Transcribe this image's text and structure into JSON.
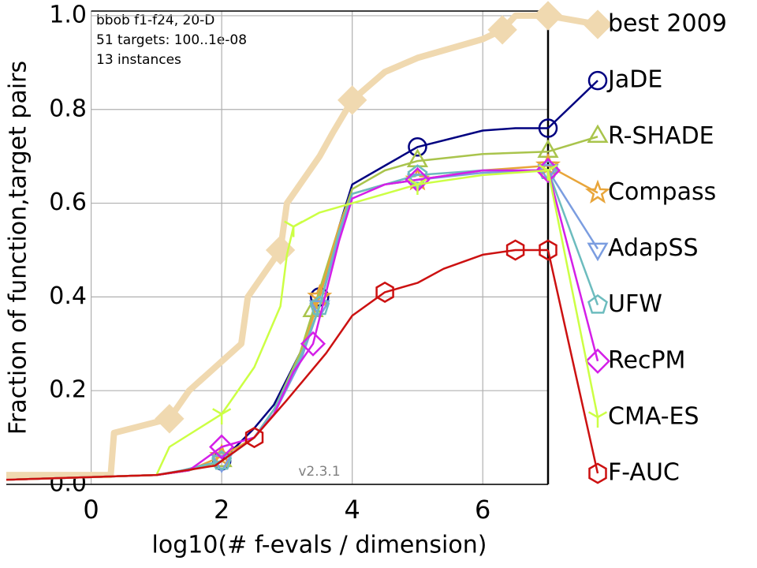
{
  "chart_data": {
    "type": "line",
    "xlabel": "log10(# f-evals / dimension)",
    "ylabel": "Fraction of function,target pairs",
    "annotations": [
      "bbob f1-f24, 20-D",
      "51 targets: 100..1e-08",
      "13 instances"
    ],
    "version": "v2.3.1",
    "xlim": [
      -1.3,
      7
    ],
    "ylim": [
      0,
      1.01
    ],
    "xticks": [
      0,
      2,
      4,
      6
    ],
    "yticks": [
      {
        "value": 0,
        "label": "0.0"
      },
      {
        "value": 0.2,
        "label": "0.2"
      },
      {
        "value": 0.4,
        "label": "0.4"
      },
      {
        "value": 0.6,
        "label": "0.6"
      },
      {
        "value": 0.8,
        "label": "0.8"
      },
      {
        "value": 1,
        "label": "1.0"
      }
    ],
    "grid": true,
    "series": [
      {
        "name": "best 2009",
        "color": "#f0d9b0",
        "marker": "diamond",
        "width": 8,
        "x": [
          -1.3,
          0.3,
          0.35,
          1.2,
          1.5,
          2.3,
          2.4,
          2.9,
          3.0,
          3.5,
          3.7,
          4.0,
          4.5,
          5.0,
          6.0,
          6.3,
          6.5,
          7.0
        ],
        "values": [
          0.02,
          0.02,
          0.11,
          0.14,
          0.2,
          0.3,
          0.4,
          0.5,
          0.6,
          0.7,
          0.75,
          0.82,
          0.88,
          0.91,
          0.95,
          0.97,
          1.0,
          1.0
        ]
      },
      {
        "name": "JaDE",
        "color": "#000080",
        "marker": "circle",
        "width": 2.5,
        "x": [
          -1.3,
          1.0,
          1.5,
          2.0,
          2.5,
          2.8,
          3.2,
          3.5,
          3.8,
          4.0,
          4.5,
          5.0,
          6.0,
          6.5,
          7.0
        ],
        "values": [
          0.01,
          0.02,
          0.03,
          0.05,
          0.12,
          0.17,
          0.28,
          0.4,
          0.55,
          0.64,
          0.68,
          0.72,
          0.755,
          0.76,
          0.76
        ]
      },
      {
        "name": "R-SHADE",
        "color": "#a9c44c",
        "marker": "triangle",
        "width": 2.5,
        "x": [
          -1.3,
          1.0,
          1.5,
          2.0,
          2.5,
          2.8,
          3.2,
          3.4,
          3.8,
          4.0,
          4.5,
          5.0,
          6.0,
          7.0
        ],
        "values": [
          0.01,
          0.02,
          0.03,
          0.05,
          0.1,
          0.16,
          0.28,
          0.37,
          0.55,
          0.63,
          0.67,
          0.69,
          0.705,
          0.71
        ]
      },
      {
        "name": "Compass",
        "color": "#e8a53a",
        "marker": "star",
        "width": 2.5,
        "x": [
          -1.3,
          1.0,
          1.5,
          2.0,
          2.5,
          2.8,
          3.2,
          3.5,
          3.8,
          4.0,
          4.5,
          5.0,
          6.0,
          7.0
        ],
        "values": [
          0.01,
          0.02,
          0.03,
          0.06,
          0.1,
          0.15,
          0.27,
          0.4,
          0.55,
          0.62,
          0.64,
          0.65,
          0.67,
          0.68
        ]
      },
      {
        "name": "AdapSS",
        "color": "#7b9de0",
        "marker": "tridown",
        "width": 2.5,
        "x": [
          -1.3,
          1.0,
          1.4,
          2.0,
          2.5,
          2.8,
          3.2,
          3.5,
          3.8,
          4.0,
          4.5,
          5.0,
          6.0,
          7.0
        ],
        "values": [
          0.01,
          0.02,
          0.03,
          0.05,
          0.1,
          0.15,
          0.26,
          0.38,
          0.53,
          0.62,
          0.64,
          0.65,
          0.665,
          0.67
        ]
      },
      {
        "name": "UFW",
        "color": "#6cbcbe",
        "marker": "pentagon",
        "width": 2.5,
        "x": [
          -1.3,
          1.0,
          1.4,
          2.0,
          2.5,
          2.8,
          3.2,
          3.5,
          3.8,
          4.0,
          4.5,
          5.0,
          6.0,
          7.0
        ],
        "values": [
          0.01,
          0.02,
          0.03,
          0.05,
          0.1,
          0.16,
          0.27,
          0.38,
          0.54,
          0.62,
          0.64,
          0.66,
          0.67,
          0.67
        ]
      },
      {
        "name": "RecPM",
        "color": "#d41fe8",
        "marker": "diamond",
        "width": 2.5,
        "x": [
          -1.3,
          1.0,
          1.5,
          2.0,
          2.5,
          2.8,
          3.1,
          3.4,
          3.8,
          4.0,
          4.5,
          5.0,
          6.0,
          7.0
        ],
        "values": [
          0.01,
          0.02,
          0.03,
          0.08,
          0.1,
          0.15,
          0.24,
          0.3,
          0.52,
          0.61,
          0.64,
          0.65,
          0.67,
          0.67
        ]
      },
      {
        "name": "CMA-ES",
        "color": "#ccff44",
        "marker": "tri",
        "width": 2.5,
        "x": [
          -1.3,
          1.0,
          1.2,
          2.0,
          2.5,
          2.9,
          3.0,
          3.1,
          3.5,
          4.0,
          4.5,
          5.0,
          6.0,
          7.0
        ],
        "values": [
          0.01,
          0.02,
          0.08,
          0.15,
          0.25,
          0.38,
          0.49,
          0.55,
          0.58,
          0.6,
          0.62,
          0.64,
          0.66,
          0.67
        ]
      },
      {
        "name": "F-AUC",
        "color": "#cc1111",
        "marker": "hexagon",
        "width": 2.5,
        "x": [
          -1.3,
          1.0,
          1.9,
          2.5,
          3.0,
          3.6,
          4.0,
          4.5,
          5.0,
          5.4,
          6.0,
          6.5,
          7.0
        ],
        "values": [
          0.01,
          0.02,
          0.04,
          0.1,
          0.18,
          0.28,
          0.36,
          0.41,
          0.43,
          0.46,
          0.49,
          0.5,
          0.5
        ]
      }
    ]
  }
}
